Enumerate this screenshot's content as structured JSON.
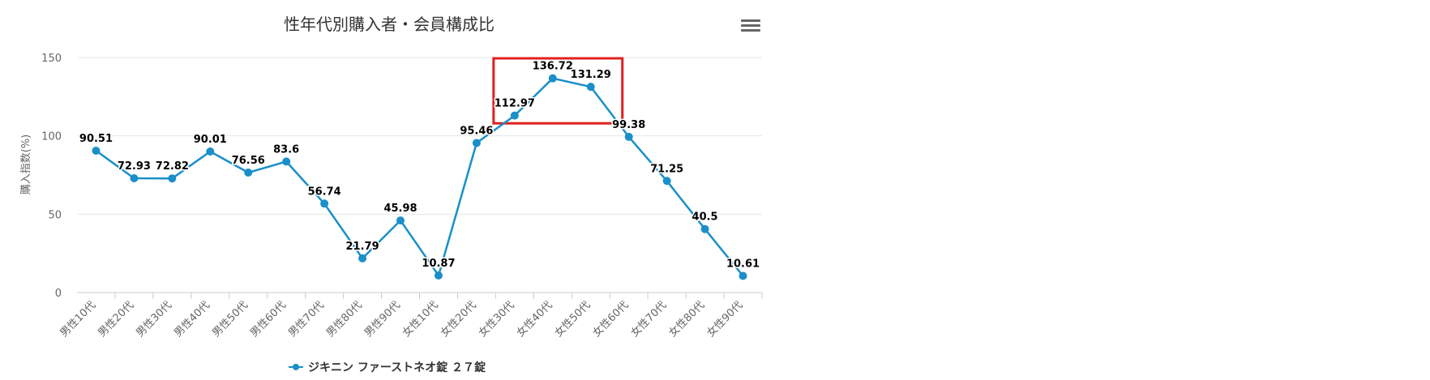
{
  "chart_data": {
    "type": "line",
    "title": "性年代別購入者・会員構成比",
    "ylabel": "購入指数(%)",
    "xlabel": "",
    "ylim": [
      0,
      150
    ],
    "yticks": [
      0,
      50,
      100,
      150
    ],
    "grid": true,
    "legend_position": "bottom-center",
    "categories": [
      "男性10代",
      "男性20代",
      "男性30代",
      "男性40代",
      "男性50代",
      "男性60代",
      "男性70代",
      "男性80代",
      "男性90代",
      "女性10代",
      "女性20代",
      "女性30代",
      "女性40代",
      "女性50代",
      "女性60代",
      "女性70代",
      "女性80代",
      "女性90代"
    ],
    "series": [
      {
        "name": "ジキニン ファーストネオ錠 ２７錠",
        "color": "#1a8fc9",
        "values": [
          90.51,
          72.93,
          72.82,
          90.01,
          76.56,
          83.6,
          56.74,
          21.79,
          45.98,
          10.87,
          95.46,
          112.97,
          136.72,
          131.29,
          99.38,
          71.25,
          40.5,
          10.61
        ]
      }
    ],
    "highlight_color": "#e02020"
  },
  "menu_icon": "hamburger-menu-icon"
}
